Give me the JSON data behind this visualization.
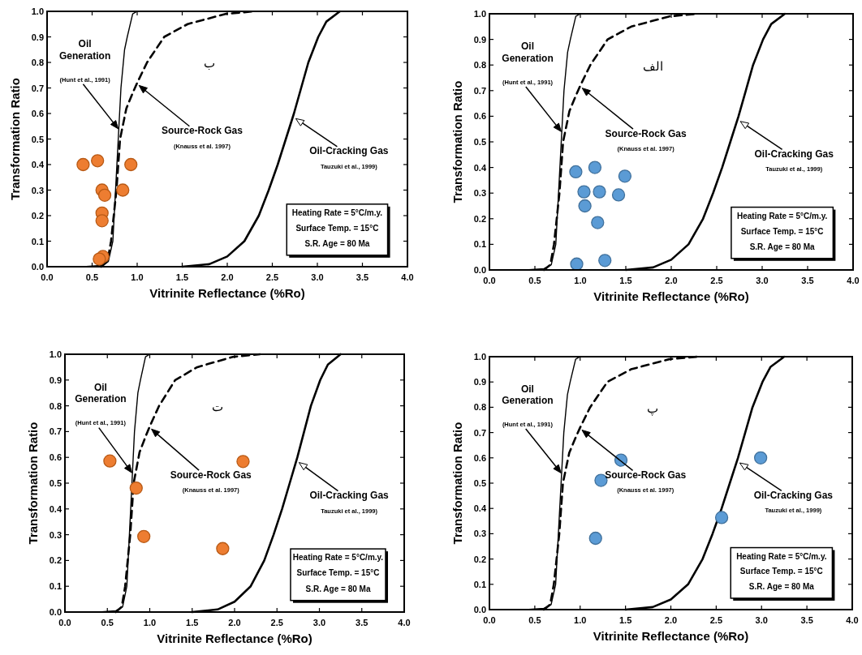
{
  "chart_data": [
    {
      "type": "scatter",
      "xlabel": "Vitrinite Reflectance (%Ro)",
      "ylabel": "Transformation Ratio",
      "xlim": [
        0,
        4
      ],
      "ylim": [
        0,
        1
      ],
      "xticks": [
        {
          "value": 0,
          "label": "0.0"
        },
        {
          "value": 0.5,
          "label": "0.5"
        },
        {
          "value": 1,
          "label": "1.0"
        },
        {
          "value": 1.5,
          "label": "1.5"
        },
        {
          "value": 2,
          "label": "2.0"
        },
        {
          "value": 2.5,
          "label": "2.5"
        },
        {
          "value": 3,
          "label": "3.0"
        },
        {
          "value": 3.5,
          "label": "3.5"
        },
        {
          "value": 4,
          "label": "4.0"
        }
      ],
      "yticks": [
        {
          "value": 0,
          "label": "0.0"
        },
        {
          "value": 0.1,
          "label": "0.1"
        },
        {
          "value": 0.2,
          "label": "0.2"
        },
        {
          "value": 0.3,
          "label": "0.3"
        },
        {
          "value": 0.4,
          "label": "0.4"
        },
        {
          "value": 0.5,
          "label": "0.5"
        },
        {
          "value": 0.6,
          "label": "0.6"
        },
        {
          "value": 0.7,
          "label": "0.7"
        },
        {
          "value": 0.8,
          "label": "0.8"
        },
        {
          "value": 0.9,
          "label": "0.9"
        },
        {
          "value": 1,
          "label": "1.0"
        }
      ],
      "series": [
        {
          "type": "line",
          "color": "#000000",
          "line_style": "solid",
          "x": [
            0.4,
            0.6,
            0.68,
            0.73,
            0.76,
            0.79,
            0.82,
            0.86,
            0.89,
            0.95,
            1.0
          ],
          "values": [
            0,
            0.005,
            0.02,
            0.1,
            0.3,
            0.5,
            0.7,
            0.85,
            0.9,
            0.99,
            1.0
          ]
        },
        {
          "type": "line",
          "color": "#000000",
          "line_style": "dashed",
          "x": [
            0.6,
            0.67,
            0.71,
            0.77,
            0.81,
            0.88,
            0.95,
            1.0,
            1.11,
            1.3,
            1.56,
            1.98,
            2.3
          ],
          "values": [
            0,
            0.02,
            0.1,
            0.3,
            0.5,
            0.62,
            0.68,
            0.72,
            0.8,
            0.9,
            0.95,
            0.99,
            1.0
          ]
        },
        {
          "type": "line",
          "color": "#000000",
          "line_style": "solid",
          "x": [
            1.5,
            1.8,
            2.0,
            2.19,
            2.35,
            2.46,
            2.56,
            2.65,
            2.74,
            2.82,
            2.9,
            3.01,
            3.1,
            3.25
          ],
          "values": [
            0,
            0.01,
            0.04,
            0.1,
            0.2,
            0.3,
            0.4,
            0.5,
            0.6,
            0.7,
            0.8,
            0.9,
            0.96,
            1.0
          ]
        },
        {
          "type": "scatter",
          "marker": "circle",
          "color": "#ed7d31",
          "x": [
            0.4,
            0.56,
            0.93,
            0.61,
            0.64,
            0.84,
            0.61,
            0.61,
            0.62,
            0.58
          ],
          "values": [
            0.4,
            0.415,
            0.4,
            0.3,
            0.28,
            0.3,
            0.21,
            0.18,
            0.04,
            0.03
          ]
        }
      ],
      "annotations": [
        "Oil\nGeneration",
        {
          "text": "(Hunt et al., 1991)",
          "x": 0.79,
          "y": 0.54
        },
        {
          "text": "Source-Rock Gas",
          "x": 1.02,
          "y": 0.71
        },
        "(Knauss et al. 1997)",
        {
          "text": "Oil-Cracking Gas",
          "x": 2.76,
          "y": 0.58
        },
        "Tauzuki et al., 1999)",
        "ب",
        "Heating Rate = 5°C/m.y.",
        "Surface Temp. = 15°C",
        "S.R. Age = 80 Ma"
      ]
    },
    {
      "type": "scatter",
      "xlabel": "Vitrinite Reflectance (%Ro)",
      "ylabel": "Transformation Ratio",
      "xlim": [
        0,
        4
      ],
      "ylim": [
        0,
        1
      ],
      "xticks": [
        {
          "value": 0,
          "label": "0.0"
        },
        {
          "value": 0.5,
          "label": "0.5"
        },
        {
          "value": 1,
          "label": "1.0"
        },
        {
          "value": 1.5,
          "label": "1.5"
        },
        {
          "value": 2,
          "label": "2.0"
        },
        {
          "value": 2.5,
          "label": "2.5"
        },
        {
          "value": 3,
          "label": "3.0"
        },
        {
          "value": 3.5,
          "label": "3.5"
        },
        {
          "value": 4,
          "label": "4.0"
        }
      ],
      "yticks": [
        {
          "value": 0,
          "label": "0.0"
        },
        {
          "value": 0.1,
          "label": "0.1"
        },
        {
          "value": 0.2,
          "label": "0.2"
        },
        {
          "value": 0.3,
          "label": "0.3"
        },
        {
          "value": 0.4,
          "label": "0.4"
        },
        {
          "value": 0.5,
          "label": "0.5"
        },
        {
          "value": 0.6,
          "label": "0.6"
        },
        {
          "value": 0.7,
          "label": "0.7"
        },
        {
          "value": 0.8,
          "label": "0.8"
        },
        {
          "value": 0.9,
          "label": "0.9"
        },
        {
          "value": 1,
          "label": "1.0"
        }
      ],
      "series": [
        {
          "type": "line",
          "color": "#000000",
          "line_style": "solid",
          "x": [
            0.4,
            0.6,
            0.68,
            0.73,
            0.76,
            0.79,
            0.82,
            0.86,
            0.89,
            0.95,
            1.0
          ],
          "values": [
            0,
            0.005,
            0.02,
            0.1,
            0.3,
            0.5,
            0.7,
            0.85,
            0.9,
            0.99,
            1.0
          ]
        },
        {
          "type": "line",
          "color": "#000000",
          "line_style": "dashed",
          "x": [
            0.6,
            0.67,
            0.71,
            0.77,
            0.81,
            0.88,
            0.95,
            1.0,
            1.11,
            1.3,
            1.56,
            1.98,
            2.3
          ],
          "values": [
            0,
            0.02,
            0.1,
            0.3,
            0.5,
            0.62,
            0.68,
            0.72,
            0.8,
            0.9,
            0.95,
            0.99,
            1.0
          ]
        },
        {
          "type": "line",
          "color": "#000000",
          "line_style": "solid",
          "x": [
            1.5,
            1.8,
            2.0,
            2.19,
            2.35,
            2.46,
            2.56,
            2.65,
            2.74,
            2.82,
            2.9,
            3.01,
            3.1,
            3.25
          ],
          "values": [
            0,
            0.01,
            0.04,
            0.1,
            0.2,
            0.3,
            0.4,
            0.5,
            0.6,
            0.7,
            0.8,
            0.9,
            0.96,
            1.0
          ]
        },
        {
          "type": "scatter",
          "marker": "circle",
          "color": "#5b9bd5",
          "x": [
            0.95,
            1.16,
            1.49,
            1.04,
            1.21,
            1.42,
            1.05,
            1.19,
            0.96,
            1.27
          ],
          "values": [
            0.383,
            0.4,
            0.366,
            0.305,
            0.305,
            0.293,
            0.25,
            0.185,
            0.023,
            0.037
          ]
        }
      ],
      "annotations": [
        "Oil\nGeneration",
        {
          "text": "(Hunt et al., 1991)",
          "x": 0.79,
          "y": 0.54
        },
        {
          "text": "Source-Rock Gas",
          "x": 1.02,
          "y": 0.71
        },
        "(Knauss et al. 1997)",
        {
          "text": "Oil-Cracking Gas",
          "x": 2.76,
          "y": 0.58
        },
        "Tauzuki et al., 1999)",
        "الف",
        "Heating Rate = 5°C/m.y.",
        "Surface Temp. = 15°C",
        "S.R. Age = 80 Ma"
      ]
    },
    {
      "type": "scatter",
      "xlabel": "Vitrinite Reflectance (%Ro)",
      "ylabel": "Transformation Ratio",
      "xlim": [
        0,
        4
      ],
      "ylim": [
        0,
        1
      ],
      "xticks": [
        {
          "value": 0,
          "label": "0.0"
        },
        {
          "value": 0.5,
          "label": "0.5"
        },
        {
          "value": 1,
          "label": "1.0"
        },
        {
          "value": 1.5,
          "label": "1.5"
        },
        {
          "value": 2,
          "label": "2.0"
        },
        {
          "value": 2.5,
          "label": "2.5"
        },
        {
          "value": 3,
          "label": "3.0"
        },
        {
          "value": 3.5,
          "label": "3.5"
        },
        {
          "value": 4,
          "label": "4.0"
        }
      ],
      "yticks": [
        {
          "value": 0,
          "label": "0.0"
        },
        {
          "value": 0.1,
          "label": "0.1"
        },
        {
          "value": 0.2,
          "label": "0.2"
        },
        {
          "value": 0.3,
          "label": "0.3"
        },
        {
          "value": 0.4,
          "label": "0.4"
        },
        {
          "value": 0.5,
          "label": "0.5"
        },
        {
          "value": 0.6,
          "label": "0.6"
        },
        {
          "value": 0.7,
          "label": "0.7"
        },
        {
          "value": 0.8,
          "label": "0.8"
        },
        {
          "value": 0.9,
          "label": "0.9"
        },
        {
          "value": 1,
          "label": "1.0"
        }
      ],
      "series": [
        {
          "type": "line",
          "color": "#000000",
          "line_style": "solid",
          "x": [
            0.4,
            0.6,
            0.68,
            0.73,
            0.76,
            0.79,
            0.82,
            0.86,
            0.89,
            0.95,
            1.0
          ],
          "values": [
            0,
            0.005,
            0.02,
            0.1,
            0.3,
            0.5,
            0.7,
            0.85,
            0.9,
            0.99,
            1.0
          ]
        },
        {
          "type": "line",
          "color": "#000000",
          "line_style": "dashed",
          "x": [
            0.6,
            0.67,
            0.71,
            0.77,
            0.81,
            0.88,
            0.95,
            1.0,
            1.11,
            1.3,
            1.56,
            1.98,
            2.3
          ],
          "values": [
            0,
            0.02,
            0.1,
            0.3,
            0.5,
            0.62,
            0.68,
            0.72,
            0.8,
            0.9,
            0.95,
            0.99,
            1.0
          ]
        },
        {
          "type": "line",
          "color": "#000000",
          "line_style": "solid",
          "x": [
            1.5,
            1.8,
            2.0,
            2.19,
            2.35,
            2.46,
            2.56,
            2.65,
            2.74,
            2.82,
            2.9,
            3.01,
            3.1,
            3.25
          ],
          "values": [
            0,
            0.01,
            0.04,
            0.1,
            0.2,
            0.3,
            0.4,
            0.5,
            0.6,
            0.7,
            0.8,
            0.9,
            0.96,
            1.0
          ]
        },
        {
          "type": "scatter",
          "marker": "circle",
          "color": "#ed7d31",
          "x": [
            0.53,
            0.84,
            2.1,
            0.93,
            1.86
          ],
          "values": [
            0.586,
            0.481,
            0.584,
            0.293,
            0.246
          ]
        }
      ],
      "annotations": [
        "Oil\nGeneration",
        {
          "text": "(Hunt et al., 1991)",
          "x": 0.79,
          "y": 0.54
        },
        {
          "text": "Source-Rock Gas",
          "x": 1.02,
          "y": 0.71
        },
        "(Knauss et al. 1997)",
        {
          "text": "Oil-Cracking Gas",
          "x": 2.76,
          "y": 0.58
        },
        "Tauzuki et al., 1999)",
        "ت",
        "Heating Rate = 5°C/m.y.",
        "Surface Temp. = 15°C",
        "S.R. Age = 80 Ma"
      ]
    },
    {
      "type": "scatter",
      "xlabel": "Vitrinite Reflectance (%Ro)",
      "ylabel": "Transformation Ratio",
      "xlim": [
        0,
        4
      ],
      "ylim": [
        0,
        1
      ],
      "xticks": [
        {
          "value": 0,
          "label": "0.0"
        },
        {
          "value": 0.5,
          "label": "0.5"
        },
        {
          "value": 1,
          "label": "1.0"
        },
        {
          "value": 1.5,
          "label": "1.5"
        },
        {
          "value": 2,
          "label": "2.0"
        },
        {
          "value": 2.5,
          "label": "2.5"
        },
        {
          "value": 3,
          "label": "3.0"
        },
        {
          "value": 3.5,
          "label": "3.5"
        },
        {
          "value": 4,
          "label": "4.0"
        }
      ],
      "yticks": [
        {
          "value": 0,
          "label": "0.0"
        },
        {
          "value": 0.1,
          "label": "0.1"
        },
        {
          "value": 0.2,
          "label": "0.2"
        },
        {
          "value": 0.3,
          "label": "0.3"
        },
        {
          "value": 0.4,
          "label": "0.4"
        },
        {
          "value": 0.5,
          "label": "0.5"
        },
        {
          "value": 0.6,
          "label": "0.6"
        },
        {
          "value": 0.7,
          "label": "0.7"
        },
        {
          "value": 0.8,
          "label": "0.8"
        },
        {
          "value": 0.9,
          "label": "0.9"
        },
        {
          "value": 1,
          "label": "1.0"
        }
      ],
      "series": [
        {
          "type": "line",
          "color": "#000000",
          "line_style": "solid",
          "x": [
            0.4,
            0.6,
            0.68,
            0.73,
            0.76,
            0.79,
            0.82,
            0.86,
            0.89,
            0.95,
            1.0
          ],
          "values": [
            0,
            0.005,
            0.02,
            0.1,
            0.3,
            0.5,
            0.7,
            0.85,
            0.9,
            0.99,
            1.0
          ]
        },
        {
          "type": "line",
          "color": "#000000",
          "line_style": "dashed",
          "x": [
            0.6,
            0.67,
            0.71,
            0.77,
            0.81,
            0.88,
            0.95,
            1.0,
            1.11,
            1.3,
            1.56,
            1.98,
            2.3
          ],
          "values": [
            0,
            0.02,
            0.1,
            0.3,
            0.5,
            0.62,
            0.68,
            0.72,
            0.8,
            0.9,
            0.95,
            0.99,
            1.0
          ]
        },
        {
          "type": "line",
          "color": "#000000",
          "line_style": "solid",
          "x": [
            1.5,
            1.8,
            2.0,
            2.19,
            2.35,
            2.46,
            2.56,
            2.65,
            2.74,
            2.82,
            2.9,
            3.01,
            3.1,
            3.25
          ],
          "values": [
            0,
            0.01,
            0.04,
            0.1,
            0.2,
            0.3,
            0.4,
            0.5,
            0.6,
            0.7,
            0.8,
            0.9,
            0.96,
            1.0
          ]
        },
        {
          "type": "scatter",
          "marker": "circle",
          "color": "#5b9bd5",
          "x": [
            1.45,
            1.23,
            1.17,
            2.56,
            2.99
          ],
          "values": [
            0.591,
            0.511,
            0.282,
            0.364,
            0.6
          ]
        }
      ],
      "annotations": [
        "Oil\nGeneration",
        {
          "text": "(Hunt et al., 1991)",
          "x": 0.79,
          "y": 0.54
        },
        {
          "text": "Source-Rock Gas",
          "x": 1.02,
          "y": 0.71
        },
        "(Knauss et al. 1997)",
        {
          "text": "Oil-Cracking Gas",
          "x": 2.76,
          "y": 0.58
        },
        "Tauzuki et al., 1999)",
        "پ",
        "Heating Rate = 5°C/m.y.",
        "Surface Temp. = 15°C",
        "S.R. Age = 80 Ma"
      ]
    }
  ]
}
